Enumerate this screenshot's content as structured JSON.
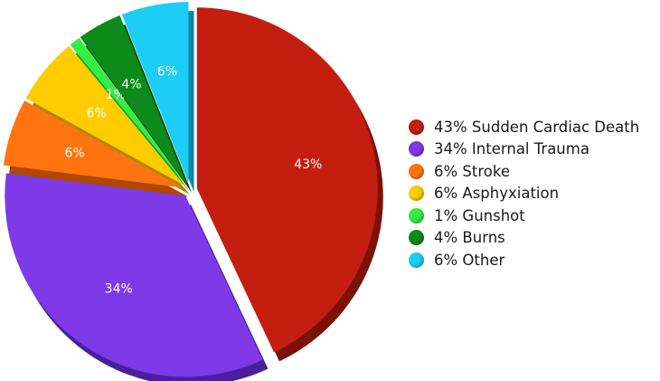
{
  "chart_data": {
    "type": "pie",
    "style": "3d exploded",
    "legend_position": "right",
    "slices": [
      {
        "label": "43%",
        "legend": "43% Sudden Cardiac Death",
        "value": 43,
        "color": "#c41e10",
        "side": "#7a1208",
        "exploded": true
      },
      {
        "label": "34%",
        "legend": "34% Internal Trauma",
        "value": 34,
        "color": "#7e3ae6",
        "side": "#4a1f9e",
        "exploded": true
      },
      {
        "label": "6%",
        "legend": "6% Stroke",
        "value": 6,
        "color": "#ff7410",
        "side": "#b04800",
        "exploded": true
      },
      {
        "label": "6%",
        "legend": "6% Asphyxiation",
        "value": 6,
        "color": "#ffcc00",
        "side": "#b08600",
        "exploded": true
      },
      {
        "label": "1%",
        "legend": "1% Gunshot",
        "value": 1,
        "color": "#33ee44",
        "side": "#10a020",
        "exploded": true
      },
      {
        "label": "4%",
        "legend": "4% Burns",
        "value": 4,
        "color": "#0d8a1a",
        "side": "#05520c",
        "exploded": true
      },
      {
        "label": "6%",
        "legend": "6% Other",
        "value": 6,
        "color": "#1ccdf5",
        "side": "#0a86a6",
        "exploded": true
      }
    ]
  }
}
